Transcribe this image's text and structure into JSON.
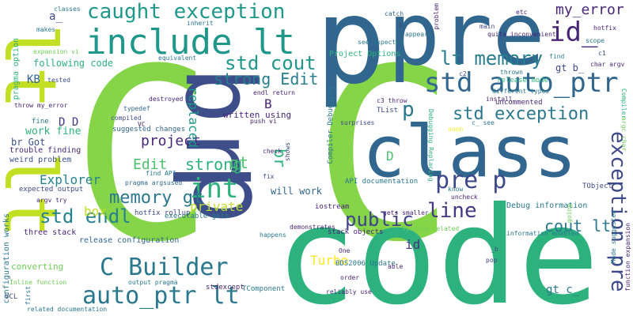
{
  "words": [
    {
      "text": "C",
      "color": "#86d549"
    },
    {
      "text": "C",
      "color": "#86d549"
    },
    {
      "text": "code",
      "color": "#2db27d"
    },
    {
      "text": "class",
      "color": "#31668e"
    },
    {
      "text": "p",
      "color": "#31668e"
    },
    {
      "text": "pre",
      "color": "#31668e"
    },
    {
      "text": "br",
      "color": "#3d4e8a"
    },
    {
      "text": "p",
      "color": "#3d4e8a"
    },
    {
      "text": "lt lt",
      "color": "#c2df23"
    },
    {
      "text": "include lt",
      "color": "#1f988b"
    },
    {
      "text": "caught exception",
      "color": "#1f988b"
    },
    {
      "text": "id_",
      "color": "#482677"
    },
    {
      "text": "my_error",
      "color": "#482677"
    },
    {
      "text": "lt memory",
      "color": "#287d8e"
    },
    {
      "text": "std auto_ptr",
      "color": "#31668e"
    },
    {
      "text": "std cout",
      "color": "#1f988b"
    },
    {
      "text": "strong Edit",
      "color": "#287d8e"
    },
    {
      "text": "std exception",
      "color": "#2a788e"
    },
    {
      "text": "p",
      "color": "#2a788e"
    },
    {
      "text": "int",
      "color": "#2db27d"
    },
    {
      "text": "pre p",
      "color": "#3e4989"
    },
    {
      "text": "exception pre",
      "color": "#3e4989"
    },
    {
      "text": "project",
      "color": "#482677"
    },
    {
      "text": "strong",
      "color": "#2db27d"
    },
    {
      "text": "Edit",
      "color": "#4ac16d"
    },
    {
      "text": "gt",
      "color": "#4ac16d"
    },
    {
      "text": "replaced",
      "color": "#1f988b"
    },
    {
      "text": "memory gt",
      "color": "#2a788e"
    },
    {
      "text": "private",
      "color": "#bddf26"
    },
    {
      "text": "std endl",
      "color": "#26828e"
    },
    {
      "text": "public",
      "color": "#404387"
    },
    {
      "text": "line",
      "color": "#453781"
    },
    {
      "text": "cout lt",
      "color": "#2a788e"
    },
    {
      "text": "C Builder",
      "color": "#2a788e"
    },
    {
      "text": "auto_ptr lt",
      "color": "#2a788e"
    },
    {
      "text": "Explorer",
      "color": "#26828e"
    },
    {
      "text": "box",
      "color": "#c2df23"
    },
    {
      "text": "br",
      "color": "#2db27d"
    },
    {
      "text": "Turbo",
      "color": "#fde725"
    },
    {
      "text": "id",
      "color": "#46337e"
    },
    {
      "text": "D",
      "color": "#4ac16d"
    },
    {
      "text": "KB",
      "color": "#31668e"
    },
    {
      "text": "a_",
      "color": "#3e4989"
    },
    {
      "text": "D D",
      "color": "#453781"
    },
    {
      "text": "work fine",
      "color": "#2db27d"
    },
    {
      "text": "br Got",
      "color": "#3b528b"
    },
    {
      "text": "B",
      "color": "#482677"
    },
    {
      "text": "gt c_",
      "color": "#2a788e"
    },
    {
      "text": "gt b_",
      "color": "#3e4989"
    },
    {
      "text": "will work",
      "color": "#31668e"
    },
    {
      "text": "converting",
      "color": "#6ece58"
    },
    {
      "text": "Project Options",
      "color": "#2db27d"
    },
    {
      "text": "following code",
      "color": "#2db27d"
    },
    {
      "text": "pragma option",
      "color": "#2db27d"
    },
    {
      "text": "configuration works",
      "color": "#2a788e"
    },
    {
      "text": "release configuration",
      "color": "#31668e"
    },
    {
      "text": "Debug information",
      "color": "#2a788e"
    },
    {
      "text": "API documentation",
      "color": "#2a788e"
    },
    {
      "text": "Compiler Debugging",
      "color": "#2a788e"
    },
    {
      "text": "written using",
      "color": "#482677"
    },
    {
      "text": "stack objects",
      "color": "#482677"
    },
    {
      "text": "three stack",
      "color": "#482677"
    },
    {
      "text": "hotfix rollup",
      "color": "#3e4989"
    },
    {
      "text": "BDS2006 Update",
      "color": "#2a788e"
    },
    {
      "text": "trouble finding",
      "color": "#482677"
    },
    {
      "text": "weird problem",
      "color": "#3b528b"
    },
    {
      "text": "executable gets",
      "color": "#2a788e"
    },
    {
      "text": "suggested changes",
      "color": "#31668e"
    },
    {
      "text": "expected output",
      "color": "#3e4989"
    },
    {
      "text": "release mode",
      "color": "#2db27d"
    },
    {
      "text": "uncommented",
      "color": "#482677"
    },
    {
      "text": "TObject",
      "color": "#3e4989"
    },
    {
      "text": "TComponent",
      "color": "#2a788e"
    },
    {
      "text": "TList",
      "color": "#3e4989"
    },
    {
      "text": "iostream",
      "color": "#482677"
    },
    {
      "text": "stdexcept",
      "color": "#482677"
    },
    {
      "text": "VCL",
      "color": "#3e4989"
    },
    {
      "text": "VC",
      "color": "#482677"
    },
    {
      "text": "fine",
      "color": "#2a788e"
    },
    {
      "text": "tested",
      "color": "#3e4989"
    },
    {
      "text": "equivalent",
      "color": "#2a788e"
    },
    {
      "text": "destroyed",
      "color": "#482677"
    },
    {
      "text": "compiled",
      "color": "#3e4989"
    },
    {
      "text": "typedef",
      "color": "#31668e"
    },
    {
      "text": "endl return",
      "color": "#482677"
    },
    {
      "text": "push vi",
      "color": "#482677"
    },
    {
      "text": "check",
      "color": "#482677"
    },
    {
      "text": "fix",
      "color": "#3e4989"
    },
    {
      "text": "shows",
      "color": "#3e4989"
    },
    {
      "text": "find API",
      "color": "#2a788e"
    },
    {
      "text": "pragma argsused",
      "color": "#31668e"
    },
    {
      "text": "surprises",
      "color": "#3e4989"
    },
    {
      "text": "c3 throw",
      "color": "#482677"
    },
    {
      "text": "c2",
      "color": "#3e4989"
    },
    {
      "text": "thrown",
      "color": "#2a788e"
    },
    {
      "text": "install",
      "color": "#482677"
    },
    {
      "text": "different types",
      "color": "#2a788e"
    },
    {
      "text": "quite inconvenient",
      "color": "#482677"
    },
    {
      "text": "catch",
      "color": "#31668e"
    },
    {
      "text": "b_",
      "color": "#3e4989"
    },
    {
      "text": "appears",
      "color": "#2a788e"
    },
    {
      "text": "see expected",
      "color": "#2a788e"
    },
    {
      "text": "problem",
      "color": "#482677"
    },
    {
      "text": "main",
      "color": "#3e4989"
    },
    {
      "text": "etc",
      "color": "#482677"
    },
    {
      "text": "hotfix",
      "color": "#482677"
    },
    {
      "text": "scope",
      "color": "#2a788e"
    },
    {
      "text": "c1",
      "color": "#3e4989"
    },
    {
      "text": "find",
      "color": "#2a788e"
    },
    {
      "text": "char argv",
      "color": "#482677"
    },
    {
      "text": "Compiler",
      "color": "#2db27d"
    },
    {
      "text": "argc char",
      "color": "#6ece58"
    },
    {
      "text": "classes",
      "color": "#2a788e"
    },
    {
      "text": "makes",
      "color": "#2a788e"
    },
    {
      "text": "inherit",
      "color": "#2a788e"
    },
    {
      "text": "expansion vi",
      "color": "#6ece58"
    },
    {
      "text": "throw my_error",
      "color": "#482677"
    },
    {
      "text": "argv try",
      "color": "#482677"
    },
    {
      "text": "Inline function",
      "color": "#6ece58"
    },
    {
      "text": "first",
      "color": "#2a788e"
    },
    {
      "text": "related documentation",
      "color": "#2a788e"
    },
    {
      "text": "output pragma",
      "color": "#2a788e"
    },
    {
      "text": "happens",
      "color": "#2a788e"
    },
    {
      "text": "demonstrates",
      "color": "#482677"
    },
    {
      "text": "One",
      "color": "#482677"
    },
    {
      "text": "gets smaller",
      "color": "#482677"
    },
    {
      "text": "order",
      "color": "#482677"
    },
    {
      "text": "reliably use",
      "color": "#482677"
    },
    {
      "text": "able",
      "color": "#482677"
    },
    {
      "text": "finding related",
      "color": "#6ece58"
    },
    {
      "text": "information enabled",
      "color": "#2a788e"
    },
    {
      "text": "pop",
      "color": "#3e4989"
    },
    {
      "text": "_b",
      "color": "#3e4989"
    },
    {
      "text": "Made suggested",
      "color": "#2a788e"
    },
    {
      "text": "function expansion",
      "color": "#482677"
    },
    {
      "text": "Debugging Replacing",
      "color": "#2db27d"
    },
    {
      "text": "know",
      "color": "#2a788e"
    },
    {
      "text": "uncheck",
      "color": "#482677"
    },
    {
      "text": "going",
      "color": "#6ece58"
    },
    {
      "text": "c_ see",
      "color": "#2a788e"
    },
    {
      "text": "soon",
      "color": "#fde725"
    }
  ]
}
